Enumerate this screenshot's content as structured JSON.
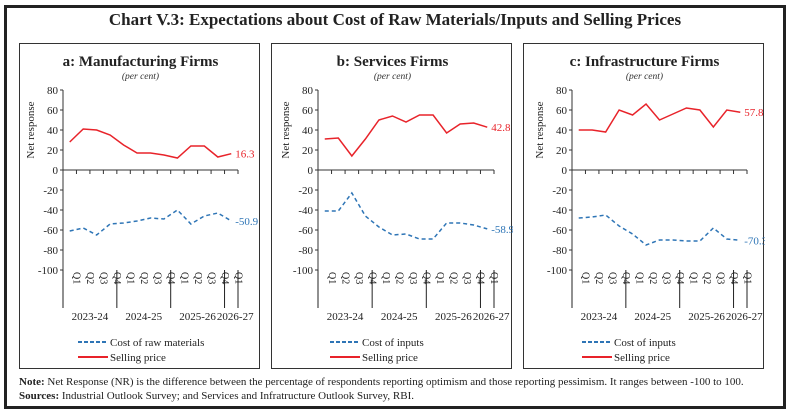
{
  "title": "Chart V.3: Expectations about Cost of Raw Materials/Inputs and Selling Prices",
  "note_label": "Note:",
  "note": "Net Response (NR) is the difference between the percentage of respondents reporting optimism and those reporting pessimism. It ranges between -100 to 100.",
  "sources_label": "Sources:",
  "sources": "Industrial Outlook Survey; and Services and Infratructure Outlook Survey, RBI.",
  "chart_data": [
    {
      "type": "line",
      "title": "a: Manufacturing Firms",
      "subtitle": "(per cent)",
      "ylabel": "Net response",
      "ylim": [
        -100,
        80
      ],
      "yticks": [
        80,
        60,
        40,
        20,
        0,
        -20,
        -40,
        -60,
        -80,
        -100
      ],
      "categories": [
        "Q1",
        "Q2",
        "Q3",
        "Q4",
        "Q1",
        "Q2",
        "Q3",
        "Q4",
        "Q1",
        "Q2",
        "Q3",
        "Q4",
        "Q1"
      ],
      "year_groups": [
        "2023-24",
        "2024-25",
        "2025-26",
        "2026-27"
      ],
      "series": [
        {
          "name": "Cost of raw materials",
          "color": "#2E75B6",
          "dash": true,
          "values": [
            -61,
            -58,
            -65,
            -54,
            -53,
            -51,
            -48,
            -49,
            -40,
            -54,
            -46,
            -43,
            -50.9
          ],
          "end_label": "-50.9"
        },
        {
          "name": "Selling price",
          "color": "#E8232A",
          "dash": false,
          "values": [
            28,
            41,
            40,
            35,
            25,
            17,
            17,
            15,
            12,
            24,
            24,
            13,
            16.3
          ],
          "end_label": "16.3"
        }
      ]
    },
    {
      "type": "line",
      "title": "b: Services Firms",
      "subtitle": "(per cent)",
      "ylabel": "Net response",
      "ylim": [
        -100,
        80
      ],
      "yticks": [
        80,
        60,
        40,
        20,
        0,
        -20,
        -40,
        -60,
        -80,
        -100
      ],
      "categories": [
        "Q1",
        "Q2",
        "Q3",
        "Q4",
        "Q1",
        "Q2",
        "Q3",
        "Q4",
        "Q1",
        "Q2",
        "Q3",
        "Q4",
        "Q1"
      ],
      "year_groups": [
        "2023-24",
        "2024-25",
        "2025-26",
        "2026-27"
      ],
      "series": [
        {
          "name": "Cost of inputs",
          "color": "#2E75B6",
          "dash": true,
          "values": [
            -41,
            -41,
            -23,
            -46,
            -57,
            -65,
            -64,
            -69,
            -69,
            -53,
            -53,
            -55,
            -58.9
          ],
          "end_label": "-58.9"
        },
        {
          "name": "Selling price",
          "color": "#E8232A",
          "dash": false,
          "values": [
            31,
            32,
            14,
            31,
            50,
            54,
            48,
            55,
            55,
            37,
            46,
            47,
            42.8
          ],
          "end_label": "42.8"
        }
      ]
    },
    {
      "type": "line",
      "title": "c: Infrastructure Firms",
      "subtitle": "(per cent)",
      "ylabel": "Net response",
      "ylim": [
        -100,
        80
      ],
      "yticks": [
        80,
        60,
        40,
        20,
        0,
        -20,
        -40,
        -60,
        -80,
        -100
      ],
      "categories": [
        "Q1",
        "Q2",
        "Q3",
        "Q4",
        "Q1",
        "Q2",
        "Q3",
        "Q4",
        "Q1",
        "Q2",
        "Q3",
        "Q4",
        "Q1"
      ],
      "year_groups": [
        "2023-24",
        "2024-25",
        "2025-26",
        "2026-27"
      ],
      "series": [
        {
          "name": "Cost of inputs",
          "color": "#2E75B6",
          "dash": true,
          "values": [
            -48,
            -47,
            -45,
            -56,
            -64,
            -75,
            -70,
            -70,
            -71,
            -71,
            -58,
            -69,
            -70.3
          ],
          "end_label": "-70.3"
        },
        {
          "name": "Selling price",
          "color": "#E8232A",
          "dash": false,
          "values": [
            40,
            40,
            38,
            60,
            55,
            66,
            50,
            56,
            62,
            60,
            43,
            60,
            57.8
          ],
          "end_label": "57.8"
        }
      ]
    }
  ]
}
